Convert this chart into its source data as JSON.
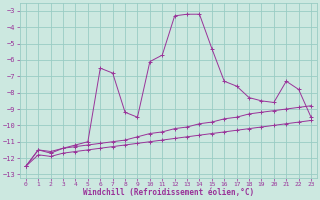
{
  "xlabel": "Windchill (Refroidissement éolien,°C)",
  "background_color": "#cce8e0",
  "grid_color": "#99ccc4",
  "line_color": "#993399",
  "xlim": [
    -0.5,
    23.5
  ],
  "ylim": [
    -13.2,
    -2.5
  ],
  "yticks": [
    -3,
    -4,
    -5,
    -6,
    -7,
    -8,
    -9,
    -10,
    -11,
    -12,
    -13
  ],
  "xticks": [
    0,
    1,
    2,
    3,
    4,
    5,
    6,
    7,
    8,
    9,
    10,
    11,
    12,
    13,
    14,
    15,
    16,
    17,
    18,
    19,
    20,
    21,
    22,
    23
  ],
  "series": [
    {
      "x": [
        0,
        1,
        2,
        3,
        4,
        5,
        6,
        7,
        8,
        9,
        10,
        11,
        12,
        13,
        14,
        15,
        16,
        17,
        18,
        19,
        20,
        21,
        22,
        23
      ],
      "y": [
        -12.5,
        -11.8,
        -11.9,
        -11.7,
        -11.6,
        -11.5,
        -11.4,
        -11.3,
        -11.2,
        -11.1,
        -11.0,
        -10.9,
        -10.8,
        -10.7,
        -10.6,
        -10.5,
        -10.4,
        -10.3,
        -10.2,
        -10.1,
        -10.0,
        -9.9,
        -9.8,
        -9.7
      ]
    },
    {
      "x": [
        0,
        1,
        2,
        3,
        4,
        5,
        6,
        7,
        8,
        9,
        10,
        11,
        12,
        13,
        14,
        15,
        16,
        17,
        18,
        19,
        20,
        21,
        22,
        23
      ],
      "y": [
        -12.5,
        -11.5,
        -11.6,
        -11.4,
        -11.3,
        -11.2,
        -11.1,
        -11.0,
        -10.9,
        -10.7,
        -10.5,
        -10.4,
        -10.2,
        -10.1,
        -9.9,
        -9.8,
        -9.6,
        -9.5,
        -9.3,
        -9.2,
        -9.1,
        -9.0,
        -8.9,
        -8.8
      ]
    },
    {
      "x": [
        0,
        1,
        2,
        3,
        4,
        5,
        6,
        7,
        8,
        9,
        10,
        11,
        12,
        13,
        14,
        15,
        16,
        17,
        18,
        19,
        20,
        21,
        22,
        23
      ],
      "y": [
        -12.5,
        -11.5,
        -11.7,
        -11.4,
        -11.2,
        -11.0,
        -6.5,
        -6.8,
        -9.2,
        -9.5,
        -6.1,
        -5.7,
        -3.3,
        -3.2,
        -3.2,
        -5.3,
        -7.3,
        -7.6,
        -8.3,
        -8.5,
        -8.6,
        -7.3,
        -7.8,
        -9.5
      ]
    }
  ]
}
